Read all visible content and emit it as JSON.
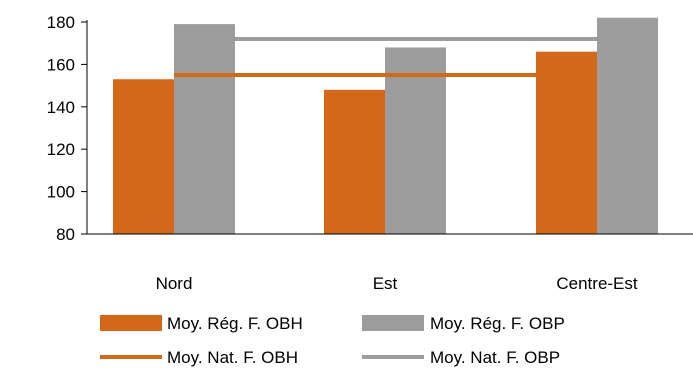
{
  "chart_data": {
    "type": "bar",
    "categories": [
      "Nord",
      "Est",
      "Centre-Est"
    ],
    "series": [
      {
        "name": "Moy. Rég. F. OBH",
        "kind": "bar",
        "color": "#D4681A",
        "values": [
          153,
          148,
          166
        ]
      },
      {
        "name": "Moy. Rég. F. OBP",
        "kind": "bar",
        "color": "#9C9C9C",
        "values": [
          179,
          168,
          182
        ]
      },
      {
        "name": "Moy. Nat. F. OBH",
        "kind": "line",
        "color": "#D4681A",
        "value": 155
      },
      {
        "name": "Moy. Nat. F. OBP",
        "kind": "line",
        "color": "#9C9C9C",
        "value": 172
      }
    ],
    "title": "",
    "xlabel": "",
    "ylabel": "",
    "ylim": [
      80,
      180
    ],
    "yticks": [
      "80",
      "100",
      "120",
      "140",
      "160",
      "180"
    ],
    "grid": false,
    "legend_position": "bottom"
  }
}
